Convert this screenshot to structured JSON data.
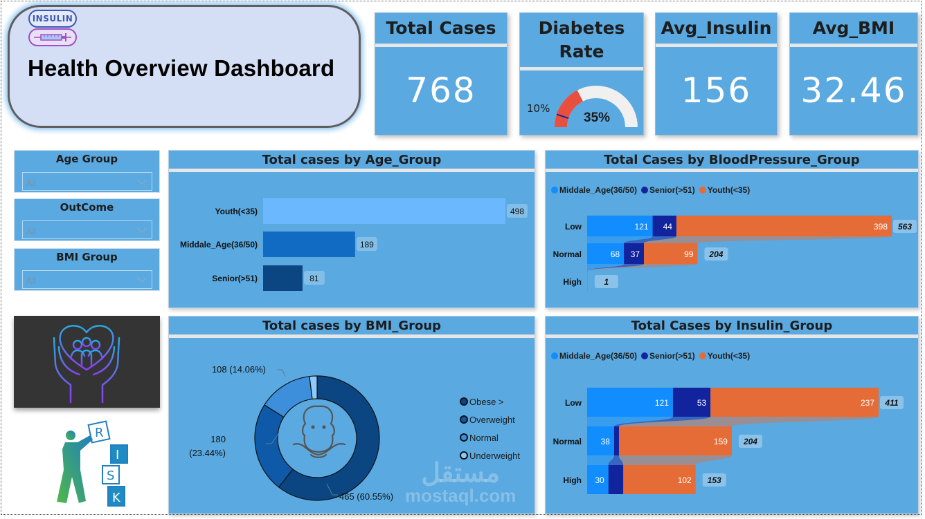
{
  "header": {
    "logo_text": "INSULIN",
    "title": "Health Overview Dashboard"
  },
  "kpis": {
    "total_cases": {
      "title": "Total Cases",
      "value": "768"
    },
    "diabetes_rate": {
      "title": "Diabetes Rate",
      "gauge_min_label": "10%",
      "value_label": "35%",
      "value": 0.35,
      "target": 0.1,
      "min": 0,
      "max": 1
    },
    "avg_insulin": {
      "title": "Avg_Insulin",
      "value": "156"
    },
    "avg_bmi": {
      "title": "Avg_BMI",
      "value": "32.46"
    }
  },
  "slicers": [
    {
      "title": "Age Group",
      "value": "All"
    },
    {
      "title": "OutCome",
      "value": "All"
    },
    {
      "title": "BMI Group",
      "value": "All"
    }
  ],
  "images": {
    "care": "hands-holding-family-heart-icon",
    "risk": "person-stacking-risk-blocks-illustration",
    "risk_letters": [
      "R",
      "I",
      "S",
      "K"
    ]
  },
  "colors": {
    "panel_bg": "#5aa9e0",
    "middle_age": "#118dff",
    "senior": "#12239e",
    "youth": "#e66c37",
    "age_youth": "#6cb8ff",
    "age_middle": "#116bc2",
    "age_senior": "#0b4682",
    "gauge_fill": "#e84f3f",
    "gauge_bg": "#f0f0f0"
  },
  "watermark": {
    "arabic": "مستقل",
    "latin": "mostaql.com"
  },
  "chart_data": [
    {
      "type": "bar",
      "orientation": "horizontal",
      "title": "Total cases by Age_Group",
      "categories": [
        "Youth(<35)",
        "Middale_Age(36/50)",
        "Senior(>51)"
      ],
      "values": [
        498,
        189,
        81
      ],
      "xlim": [
        0,
        498
      ]
    },
    {
      "type": "bar",
      "orientation": "horizontal",
      "stacked": true,
      "title": "Total Cases by BloodPressure_Group",
      "categories": [
        "Low",
        "Normal",
        "High"
      ],
      "legend_position": "top-left",
      "series": [
        {
          "name": "Middale_Age(36/50)",
          "values": [
            121,
            68,
            0
          ],
          "labels": [
            "121",
            "68",
            ""
          ]
        },
        {
          "name": "Senior(>51)",
          "values": [
            44,
            37,
            0
          ],
          "labels": [
            "44",
            "37",
            ""
          ]
        },
        {
          "name": "Youth(<35)",
          "values": [
            398,
            99,
            1
          ],
          "labels": [
            "398",
            "99",
            ""
          ]
        }
      ],
      "totals": [
        563,
        204,
        1
      ],
      "xlim": [
        0,
        563
      ]
    },
    {
      "type": "pie",
      "donut": true,
      "title": "Total cases by BMI_Group",
      "legend_position": "right",
      "slices": [
        {
          "name": "Obese >",
          "value": 465,
          "label": "465 (60.55%)"
        },
        {
          "name": "Overweight",
          "value": 180,
          "label": "180 (23.44%)"
        },
        {
          "name": "Normal",
          "value": 108,
          "label": "108 (14.06%)"
        },
        {
          "name": "Underweight",
          "value": 15,
          "label": ""
        }
      ]
    },
    {
      "type": "bar",
      "orientation": "horizontal",
      "stacked": true,
      "title": "Total Cases by Insulin_Group",
      "categories": [
        "Low",
        "Normal",
        "High"
      ],
      "legend_position": "top-left",
      "series": [
        {
          "name": "Middale_Age(36/50)",
          "values": [
            121,
            38,
            30
          ],
          "labels": [
            "121",
            "38",
            "30"
          ]
        },
        {
          "name": "Senior(>51)",
          "values": [
            53,
            7,
            21
          ],
          "labels": [
            "53",
            "",
            ""
          ]
        },
        {
          "name": "Youth(<35)",
          "values": [
            237,
            159,
            102
          ],
          "labels": [
            "237",
            "159",
            "102"
          ]
        }
      ],
      "totals": [
        411,
        204,
        153
      ],
      "xlim": [
        0,
        411
      ]
    }
  ]
}
